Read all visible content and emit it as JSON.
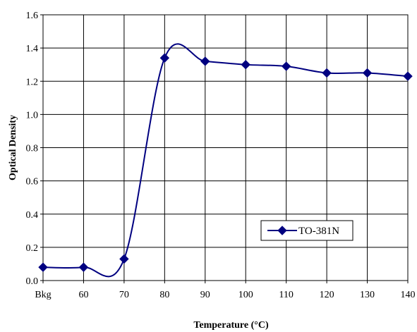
{
  "chart_data": {
    "type": "line",
    "title": "",
    "xlabel": "Temperature (°C)",
    "ylabel": "Optical Density",
    "categories": [
      "Bkg",
      "60",
      "70",
      "80",
      "90",
      "100",
      "110",
      "120",
      "130",
      "140"
    ],
    "ylim": [
      0,
      1.6
    ],
    "yticks": [
      "0.0",
      "0.2",
      "0.4",
      "0.6",
      "0.8",
      "1.0",
      "1.2",
      "1.4",
      "1.6"
    ],
    "grid": true,
    "legend_position": "lower-right",
    "series": [
      {
        "name": "TO-381N",
        "color": "#000080",
        "marker": "diamond",
        "smooth": true,
        "values": [
          0.08,
          0.08,
          0.13,
          1.34,
          1.32,
          1.3,
          1.29,
          1.25,
          1.25,
          1.23
        ]
      }
    ]
  }
}
